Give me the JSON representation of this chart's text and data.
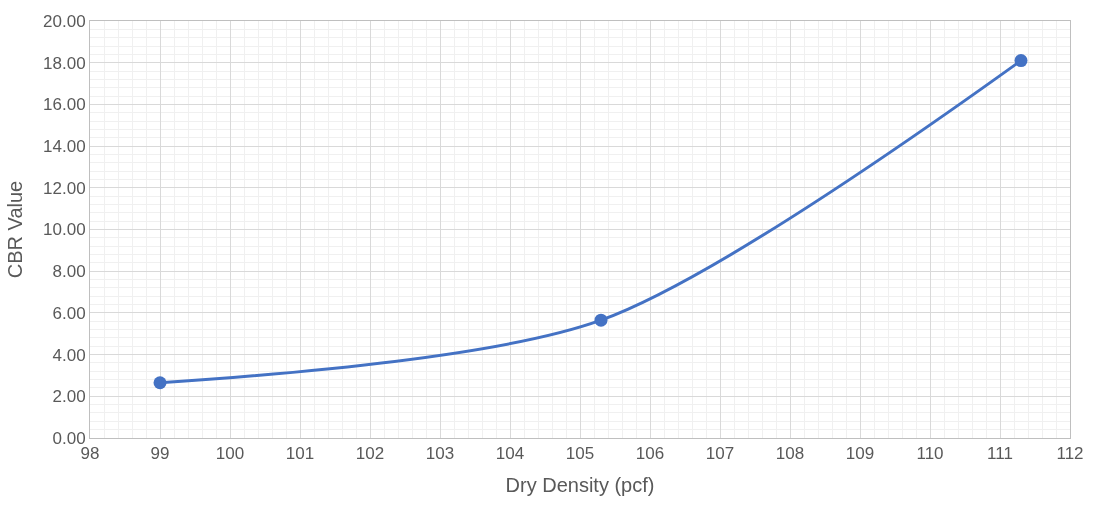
{
  "chart_data": {
    "type": "line",
    "xlabel": "Dry Density (pcf)",
    "ylabel": "CBR Value",
    "x": [
      99,
      105.3,
      111.3
    ],
    "series": [
      {
        "color": "#4472c4",
        "values": [
          2.65,
          5.65,
          18.1
        ]
      }
    ],
    "xlim": [
      98,
      112
    ],
    "xticks": [
      98,
      99,
      100,
      101,
      102,
      103,
      104,
      105,
      106,
      107,
      108,
      109,
      110,
      111,
      112
    ],
    "ylim": [
      0,
      20
    ],
    "yticks": [
      {
        "value": 0,
        "label": "0.00"
      },
      {
        "value": 2,
        "label": "2.00"
      },
      {
        "value": 4,
        "label": "4.00"
      },
      {
        "value": 6,
        "label": "6.00"
      },
      {
        "value": 8,
        "label": "8.00"
      },
      {
        "value": 10,
        "label": "10.00"
      },
      {
        "value": 12,
        "label": "12.00"
      },
      {
        "value": 14,
        "label": "14.00"
      },
      {
        "value": 16,
        "label": "16.00"
      },
      {
        "value": 18,
        "label": "18.00"
      },
      {
        "value": 20,
        "label": "20.00"
      }
    ],
    "grid": true,
    "marker": "circle",
    "line_style": "solid"
  }
}
